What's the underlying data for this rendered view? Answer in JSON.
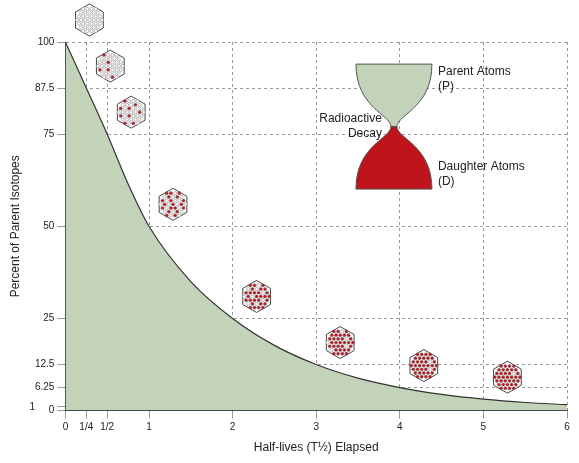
{
  "chart_data": {
    "type": "area",
    "x_label": "Half-lives (T½) Elapsed",
    "y_label": "Percent of Parent Isotopes",
    "x": [
      0,
      0.25,
      0.5,
      0.75,
      1,
      1.5,
      2,
      2.5,
      3,
      3.5,
      4,
      4.5,
      5,
      5.5,
      6
    ],
    "values": [
      100,
      87.5,
      75,
      61.5,
      50,
      35,
      25,
      17.7,
      12.5,
      8.8,
      6.25,
      4.4,
      3.1,
      2.2,
      1.6
    ],
    "color": "#c3d3ba",
    "xlim": [
      0,
      6
    ],
    "ylim": [
      0,
      100
    ],
    "xticks": [
      0,
      {
        "value": 0.25,
        "label": "1/4"
      },
      {
        "value": 0.5,
        "label": "1/2"
      },
      1,
      2,
      3,
      4,
      5,
      6
    ],
    "yticks": [
      0,
      1,
      6.25,
      12.5,
      25,
      50,
      75,
      87.5,
      100
    ],
    "grid": true,
    "annotations": [
      "Parent Atoms (P)",
      "Radioactive Decay",
      "Daughter Atoms (D)"
    ]
  }
}
